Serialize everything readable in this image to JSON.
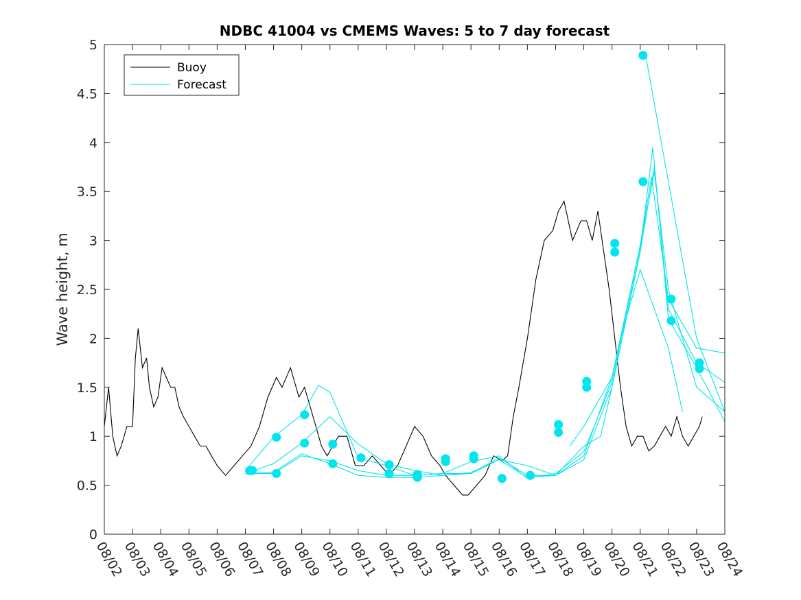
{
  "chart_data": {
    "type": "line",
    "title": "NDBC 41004 vs CMEMS Waves: 5 to 7 day forecast",
    "xlabel": "",
    "ylabel": "Wave height, m",
    "xlim": [
      0,
      22
    ],
    "ylim": [
      0,
      5
    ],
    "yticks": [
      0,
      0.5,
      1,
      1.5,
      2,
      2.5,
      3,
      3.5,
      4,
      4.5,
      5
    ],
    "ytick_labels": [
      "0",
      "0.5",
      "1",
      "1.5",
      "2",
      "2.5",
      "3",
      "3.5",
      "4",
      "4.5",
      "5"
    ],
    "xticks": [
      0,
      1,
      2,
      3,
      4,
      5,
      6,
      7,
      8,
      9,
      10,
      11,
      12,
      13,
      14,
      15,
      16,
      17,
      18,
      19,
      20,
      21,
      22
    ],
    "xtick_labels": [
      "08/02",
      "08/03",
      "08/04",
      "08/05",
      "08/06",
      "08/07",
      "08/08",
      "08/09",
      "08/10",
      "08/11",
      "08/12",
      "08/13",
      "08/14",
      "08/15",
      "08/16",
      "08/17",
      "08/18",
      "08/19",
      "08/20",
      "08/21",
      "08/22",
      "08/23",
      "08/24"
    ],
    "x_units": "days since 08/02",
    "legend": {
      "position": "top-left",
      "entries": [
        {
          "name": "Buoy",
          "color": "#000000"
        },
        {
          "name": "Forecast",
          "color": "#00e5ee"
        }
      ]
    },
    "colors": {
      "buoy": "#000000",
      "forecast": "#00e5ee",
      "markers": "#00e5ee"
    },
    "series": [
      {
        "name": "Buoy",
        "color": "#000000",
        "x": [
          0,
          0.15,
          0.3,
          0.45,
          0.6,
          0.8,
          1.0,
          1.1,
          1.2,
          1.35,
          1.5,
          1.6,
          1.75,
          1.9,
          2.05,
          2.2,
          2.35,
          2.5,
          2.65,
          2.8,
          3.0,
          3.2,
          3.4,
          3.6,
          3.8,
          4.0,
          4.3,
          4.6,
          4.9,
          5.2,
          5.5,
          5.8,
          6.1,
          6.3,
          6.6,
          6.9,
          7.1,
          7.3,
          7.5,
          7.7,
          7.9,
          8.1,
          8.3,
          8.6,
          8.9,
          9.2,
          9.5,
          9.8,
          10.1,
          10.4,
          10.7,
          11.0,
          11.3,
          11.6,
          11.9,
          12.1,
          12.4,
          12.7,
          12.9,
          13.2,
          13.5,
          13.8,
          14.1,
          14.3,
          14.5,
          14.7,
          15.0,
          15.3,
          15.6,
          15.9,
          16.1,
          16.3,
          16.6,
          16.9,
          17.1,
          17.3,
          17.5,
          17.7,
          17.9,
          18.1,
          18.3,
          18.5,
          18.7,
          18.9,
          19.1,
          19.3,
          19.5,
          19.7,
          19.9,
          20.1,
          20.3,
          20.5,
          20.7,
          20.9,
          21.1,
          21.2
        ],
        "y": [
          1.1,
          1.5,
          1.0,
          0.8,
          0.9,
          1.1,
          1.1,
          1.8,
          2.1,
          1.7,
          1.8,
          1.5,
          1.3,
          1.4,
          1.7,
          1.6,
          1.5,
          1.5,
          1.3,
          1.2,
          1.1,
          1.0,
          0.9,
          0.9,
          0.8,
          0.7,
          0.6,
          0.7,
          0.8,
          0.9,
          1.1,
          1.4,
          1.6,
          1.5,
          1.7,
          1.4,
          1.5,
          1.3,
          1.1,
          0.9,
          0.8,
          0.9,
          1.0,
          1.0,
          0.7,
          0.7,
          0.8,
          0.7,
          0.6,
          0.7,
          0.9,
          1.1,
          1.0,
          0.8,
          0.7,
          0.6,
          0.5,
          0.4,
          0.4,
          0.5,
          0.6,
          0.8,
          0.75,
          0.8,
          1.2,
          1.5,
          2.0,
          2.6,
          3.0,
          3.1,
          3.3,
          3.4,
          3.0,
          3.2,
          3.2,
          3.0,
          3.3,
          2.9,
          2.5,
          2.0,
          1.5,
          1.1,
          0.9,
          1.0,
          1.0,
          0.85,
          0.9,
          1.0,
          1.1,
          1.0,
          1.2,
          1.0,
          0.9,
          1.0,
          1.1,
          1.2
        ]
      },
      {
        "name": "Forecast",
        "color": "#00e5ee",
        "x": [
          5.0,
          6.0,
          7.0,
          7.6,
          8.0,
          9.0,
          10.0,
          11.0,
          12.0,
          13.0,
          14.0,
          15.0,
          16.0,
          17.0,
          18.0,
          19.0,
          19.4,
          20.0,
          21.0,
          22.0
        ],
        "y": [
          0.65,
          0.99,
          1.22,
          1.52,
          1.45,
          0.78,
          0.7,
          0.6,
          0.62,
          0.74,
          0.8,
          0.57,
          0.62,
          0.84,
          1.55,
          2.95,
          3.65,
          2.4,
          1.9,
          1.85
        ]
      },
      {
        "name": "Forecast",
        "color": "#00e5ee",
        "x": [
          5.0,
          6.0,
          7.0,
          8.0,
          9.0,
          10.0,
          11.0,
          12.0,
          13.0,
          14.0,
          15.0,
          16.0,
          17.0,
          17.6,
          18.0,
          19.0,
          19.45,
          20.0,
          21.0,
          22.0
        ],
        "y": [
          0.62,
          0.72,
          0.93,
          1.2,
          0.92,
          0.72,
          0.65,
          0.6,
          0.62,
          0.76,
          0.7,
          0.6,
          0.9,
          1.0,
          1.5,
          2.9,
          3.95,
          2.2,
          1.7,
          1.15
        ]
      },
      {
        "name": "Forecast",
        "color": "#00e5ee",
        "x": [
          5.0,
          6.0,
          7.0,
          8.0,
          9.0,
          10.0,
          11.0,
          12.0,
          13.0,
          14.0,
          15.0,
          16.0,
          17.0,
          18.0,
          19.0,
          19.5,
          20.0,
          21.0,
          22.0
        ],
        "y": [
          0.62,
          0.63,
          0.82,
          0.72,
          0.6,
          0.58,
          0.58,
          0.6,
          0.63,
          0.76,
          0.58,
          0.6,
          0.76,
          1.5,
          2.88,
          3.75,
          2.3,
          1.75,
          1.55
        ]
      },
      {
        "name": "Forecast",
        "color": "#00e5ee",
        "x": [
          5.0,
          6.0,
          7.0,
          8.0,
          9.0,
          10.0,
          11.0,
          12.0,
          13.0,
          14.0,
          15.0,
          16.0,
          17.0,
          18.0,
          19.0,
          19.5,
          20.0,
          21.0,
          22.0
        ],
        "y": [
          0.62,
          0.62,
          0.8,
          0.75,
          0.65,
          0.6,
          0.6,
          0.62,
          0.62,
          0.78,
          0.6,
          0.6,
          0.8,
          1.6,
          2.95,
          3.7,
          2.5,
          1.5,
          1.25
        ]
      },
      {
        "name": "Forecast",
        "color": "#00e5ee",
        "x": [
          19.2,
          20.0,
          21.0,
          22.0
        ],
        "y": [
          4.88,
          3.6,
          2.0,
          1.25
        ]
      },
      {
        "name": "Forecast",
        "color": "#00e5ee",
        "x": [
          16.5,
          17.0,
          18.0,
          18.3,
          19.0,
          20.0,
          20.5
        ],
        "y": [
          0.9,
          1.1,
          1.6,
          2.0,
          2.7,
          1.9,
          1.25
        ]
      }
    ],
    "markers": {
      "color": "#00e5ee",
      "x": [
        5.15,
        5.25,
        6.1,
        6.1,
        7.1,
        7.1,
        8.1,
        8.1,
        9.1,
        10.1,
        10.1,
        11.1,
        11.1,
        12.1,
        12.1,
        13.1,
        13.1,
        14.1,
        15.1,
        15.1,
        16.1,
        16.1,
        17.1,
        17.1,
        18.1,
        18.1,
        19.1,
        19.1,
        20.1,
        20.1,
        21.1,
        21.1
      ],
      "y": [
        0.65,
        0.65,
        0.62,
        0.99,
        0.93,
        1.22,
        0.72,
        0.92,
        0.78,
        0.62,
        0.71,
        0.58,
        0.61,
        0.74,
        0.77,
        0.77,
        0.8,
        0.57,
        0.6,
        0.6,
        1.04,
        1.12,
        1.5,
        1.56,
        2.88,
        2.97,
        3.6,
        4.89,
        2.18,
        2.4,
        1.69,
        1.75
      ]
    }
  }
}
